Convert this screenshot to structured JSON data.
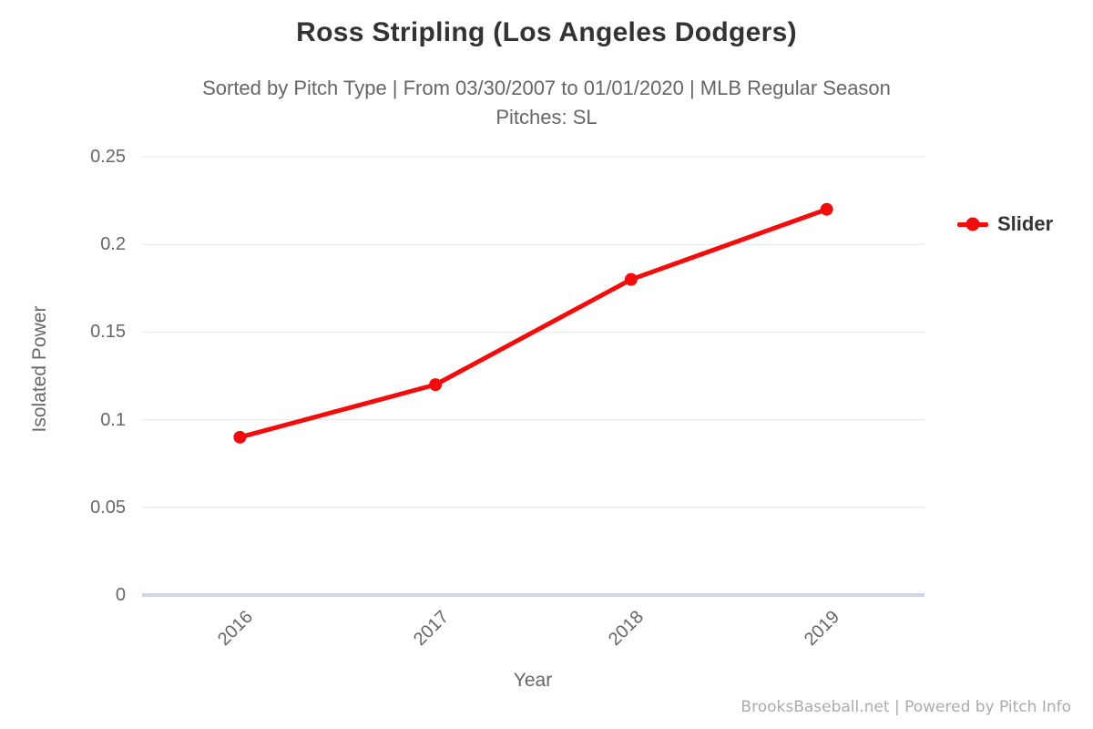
{
  "header": {
    "title": "Ross Stripling (Los Angeles Dodgers)",
    "subtitle_line1": "Sorted by Pitch Type | From 03/30/2007 to 01/01/2020 | MLB Regular Season",
    "subtitle_line2": "Pitches: SL"
  },
  "chart_data": {
    "type": "line",
    "title": "Ross Stripling (Los Angeles Dodgers)",
    "subtitle": "Sorted by Pitch Type | From 03/30/2007 to 01/01/2020 | MLB Regular Season | Pitches: SL",
    "categories": [
      "2016",
      "2017",
      "2018",
      "2019"
    ],
    "series": [
      {
        "name": "Slider",
        "values": [
          0.09,
          0.12,
          0.18,
          0.22
        ],
        "color": "#f40b0b"
      }
    ],
    "xlabel": "Year",
    "ylabel": "Isolated Power",
    "ylim": [
      0,
      0.25
    ],
    "ytick_interval": 0.05,
    "yticks": [
      "0",
      "0.05",
      "0.1",
      "0.15",
      "0.2",
      "0.25"
    ],
    "grid": true,
    "legend_position": "right"
  },
  "legend": {
    "items": [
      {
        "label": "Slider",
        "color": "#f40b0b"
      }
    ]
  },
  "footer": {
    "credit": "BrooksBaseball.net | Powered by Pitch Info"
  },
  "colors": {
    "series_red": "#f40b0b",
    "gridline": "#e6e6e6",
    "axis_line": "#ccd6eb",
    "title_text": "#333333",
    "label_text": "#666666",
    "credit_text": "#ababab"
  }
}
